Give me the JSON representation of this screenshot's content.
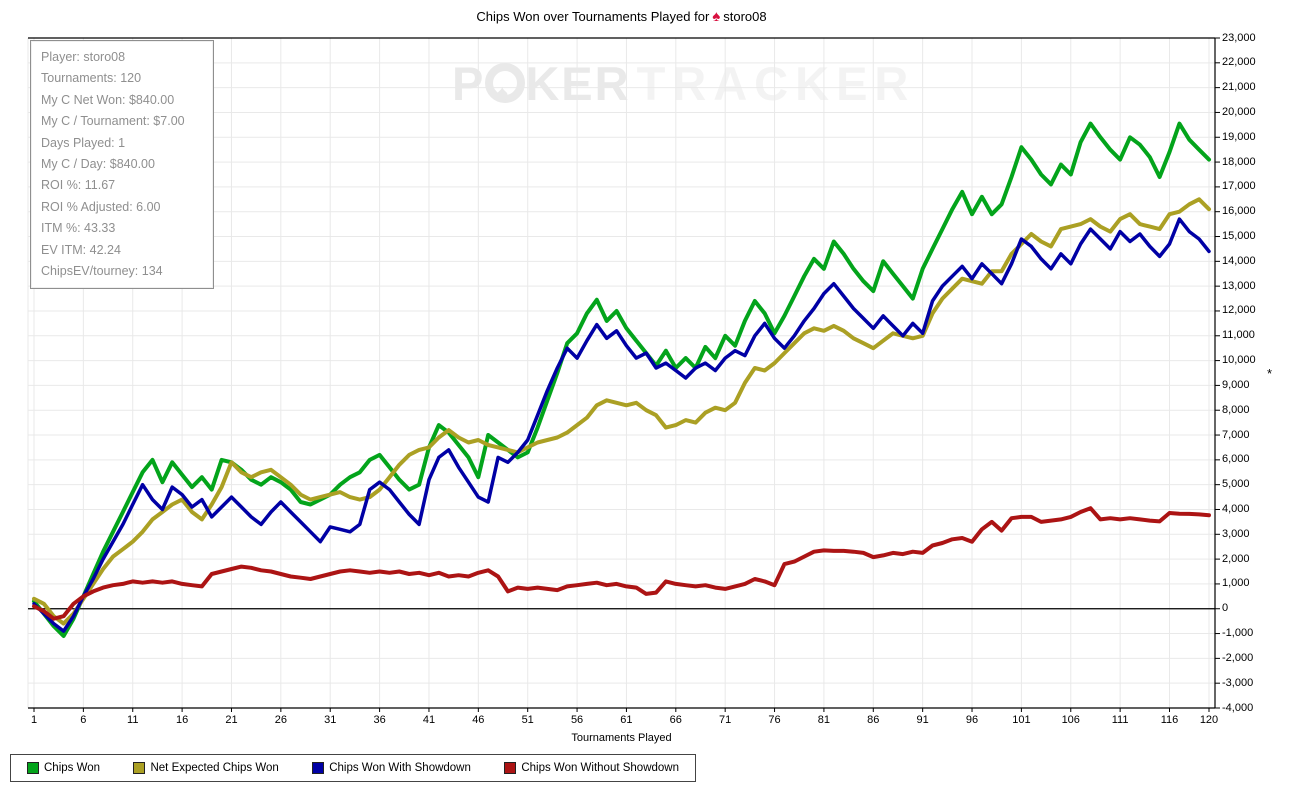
{
  "title": {
    "prefix": "Chips Won over Tournaments Played for",
    "spade_icon": "♠",
    "player": "storo08"
  },
  "watermark": {
    "part1": "P",
    "chip_icon": "poker-chip-icon",
    "chip_glyph": "♠",
    "part2": "KER",
    "part3": "TRACKER"
  },
  "stats_panel": {
    "lines": [
      "Player: storo08",
      "Tournaments: 120",
      "My C Net Won: $840.00",
      "My C / Tournament: $7.00",
      "Days Played: 1",
      "My C / Day: $840.00",
      "ROI %: 11.67",
      "ROI % Adjusted: 6.00",
      "ITM %: 43.33",
      "EV ITM: 42.24",
      "ChipsEV/tourney: 134"
    ]
  },
  "axes": {
    "x_label": "Tournaments Played",
    "y_label": "*",
    "x_ticks": [
      1,
      6,
      11,
      16,
      21,
      26,
      31,
      36,
      41,
      46,
      51,
      56,
      61,
      66,
      71,
      76,
      81,
      86,
      91,
      96,
      101,
      106,
      111,
      116,
      120
    ],
    "y_min": -4000,
    "y_max": 23000,
    "y_step": 1000
  },
  "colors": {
    "grid": "#e9e9e9",
    "axis": "#000000",
    "zero_line": "#000000",
    "green": "#03a41b",
    "olive": "#aba024",
    "blue": "#0000a5",
    "red": "#ac1414"
  },
  "chart_data": {
    "type": "line",
    "title": "Chips Won over Tournaments Played for storo08",
    "xlabel": "Tournaments Played",
    "ylabel": "*",
    "xlim": [
      1,
      120
    ],
    "ylim": [
      -4000,
      23000
    ],
    "grid": true,
    "legend_position": "bottom-left",
    "x": "tournament index 1..120",
    "series": [
      {
        "name": "Chips Won",
        "color": "#03a41b",
        "width": 4,
        "values": [
          300,
          -200,
          -700,
          -1100,
          -400,
          500,
          1400,
          2300,
          3100,
          3900,
          4700,
          5500,
          6000,
          5100,
          5900,
          5400,
          4900,
          5300,
          4800,
          6000,
          5900,
          5600,
          5200,
          5000,
          5300,
          5100,
          4800,
          4300,
          4200,
          4400,
          4600,
          5000,
          5300,
          5500,
          6000,
          6200,
          5700,
          5200,
          4800,
          5000,
          6500,
          7400,
          7100,
          6600,
          6100,
          5300,
          7000,
          6700,
          6400,
          6100,
          6300,
          7300,
          8400,
          9500,
          10700,
          11100,
          11900,
          12450,
          11600,
          12000,
          11300,
          10800,
          10300,
          9800,
          10400,
          9700,
          10100,
          9700,
          10550,
          10100,
          11000,
          10600,
          11600,
          12400,
          11900,
          11100,
          11800,
          12600,
          13400,
          14100,
          13700,
          14800,
          14300,
          13700,
          13200,
          12800,
          14000,
          13500,
          13000,
          12500,
          13700,
          14500,
          15300,
          16100,
          16800,
          15900,
          16600,
          15900,
          16300,
          17400,
          18600,
          18100,
          17500,
          17100,
          17900,
          17500,
          18800,
          19550,
          19000,
          18500,
          18100,
          19000,
          18700,
          18200,
          17400,
          18400,
          19550,
          18900,
          18500,
          18100
        ]
      },
      {
        "name": "Net Expected Chips Won",
        "color": "#aba024",
        "width": 4,
        "values": [
          400,
          200,
          -300,
          -600,
          -200,
          400,
          1000,
          1600,
          2100,
          2400,
          2700,
          3100,
          3600,
          3900,
          4200,
          4400,
          3900,
          3600,
          4200,
          4900,
          5900,
          5500,
          5300,
          5500,
          5600,
          5300,
          5000,
          4600,
          4400,
          4500,
          4600,
          4700,
          4500,
          4400,
          4500,
          4800,
          5300,
          5800,
          6200,
          6400,
          6500,
          6900,
          7200,
          6900,
          6700,
          6800,
          6600,
          6500,
          6400,
          6300,
          6500,
          6700,
          6800,
          6900,
          7100,
          7400,
          7700,
          8200,
          8400,
          8300,
          8200,
          8300,
          8000,
          7800,
          7300,
          7400,
          7600,
          7500,
          7900,
          8100,
          8000,
          8300,
          9100,
          9700,
          9600,
          9900,
          10300,
          10700,
          11100,
          11300,
          11200,
          11400,
          11200,
          10900,
          10700,
          10500,
          10800,
          11100,
          11000,
          10900,
          11000,
          11900,
          12500,
          12900,
          13300,
          13200,
          13100,
          13600,
          13600,
          14300,
          14700,
          15100,
          14800,
          14600,
          15300,
          15400,
          15500,
          15700,
          15400,
          15200,
          15700,
          15900,
          15500,
          15400,
          15300,
          15900,
          16000,
          16300,
          16500,
          16100
        ]
      },
      {
        "name": "Chips Won With Showdown",
        "color": "#0000a5",
        "width": 3.5,
        "values": [
          200,
          -200,
          -600,
          -900,
          -300,
          500,
          1200,
          2000,
          2700,
          3400,
          4200,
          5000,
          4400,
          4000,
          4900,
          4600,
          4100,
          4400,
          3700,
          4100,
          4500,
          4100,
          3700,
          3400,
          3900,
          4300,
          3900,
          3500,
          3100,
          2700,
          3300,
          3200,
          3100,
          3400,
          4800,
          5100,
          4800,
          4300,
          3800,
          3400,
          5200,
          6100,
          6400,
          5700,
          5100,
          4500,
          4300,
          6100,
          5900,
          6300,
          6800,
          7800,
          8800,
          9700,
          10500,
          10100,
          10800,
          11450,
          10900,
          11200,
          10600,
          10100,
          10300,
          9700,
          9900,
          9600,
          9300,
          9700,
          9900,
          9600,
          10100,
          10400,
          10200,
          11000,
          11500,
          10900,
          10500,
          11000,
          11600,
          12100,
          12700,
          13100,
          12600,
          12100,
          11700,
          11300,
          11800,
          11400,
          11000,
          11500,
          11100,
          12400,
          13000,
          13400,
          13800,
          13300,
          13900,
          13500,
          13100,
          13900,
          14900,
          14600,
          14100,
          13700,
          14300,
          13900,
          14700,
          15300,
          14900,
          14500,
          15200,
          14800,
          15100,
          14600,
          14200,
          14700,
          15700,
          15200,
          14900,
          14400
        ]
      },
      {
        "name": "Chips Won Without Showdown",
        "color": "#ac1414",
        "width": 4,
        "values": [
          100,
          -100,
          -400,
          -300,
          200,
          500,
          700,
          850,
          950,
          1000,
          1100,
          1050,
          1100,
          1050,
          1100,
          1000,
          950,
          900,
          1400,
          1500,
          1600,
          1700,
          1650,
          1550,
          1500,
          1400,
          1300,
          1250,
          1200,
          1300,
          1400,
          1500,
          1550,
          1500,
          1450,
          1500,
          1450,
          1500,
          1400,
          1450,
          1350,
          1450,
          1300,
          1350,
          1300,
          1450,
          1550,
          1300,
          700,
          850,
          800,
          850,
          800,
          750,
          900,
          950,
          1000,
          1050,
          950,
          1000,
          900,
          850,
          600,
          650,
          1100,
          1000,
          950,
          900,
          950,
          850,
          800,
          900,
          1000,
          1200,
          1100,
          950,
          1800,
          1900,
          2100,
          2300,
          2350,
          2330,
          2330,
          2300,
          2250,
          2080,
          2150,
          2250,
          2200,
          2300,
          2250,
          2550,
          2650,
          2800,
          2850,
          2700,
          3200,
          3500,
          3150,
          3650,
          3700,
          3700,
          3500,
          3550,
          3600,
          3700,
          3900,
          4050,
          3600,
          3650,
          3600,
          3650,
          3600,
          3550,
          3520,
          3860,
          3830,
          3820,
          3800,
          3770
        ]
      }
    ]
  },
  "legend": {
    "items": [
      "Chips Won",
      "Net Expected Chips Won",
      "Chips Won With Showdown",
      "Chips Won Without Showdown"
    ]
  }
}
